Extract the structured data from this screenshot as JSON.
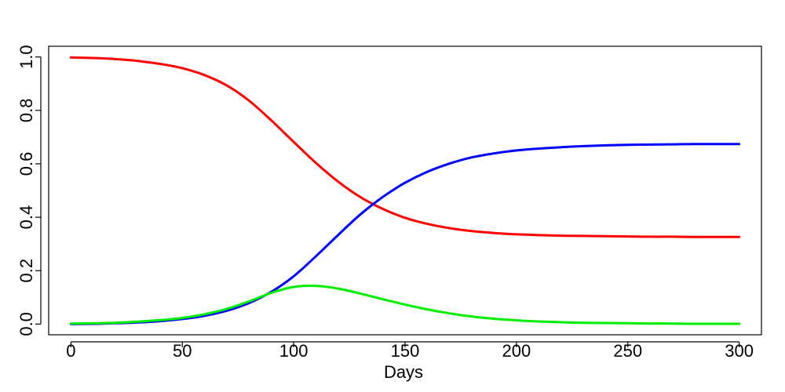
{
  "chart_data": {
    "type": "line",
    "title": "",
    "xlabel": "Days",
    "ylabel": "",
    "xlim": [
      -10,
      310
    ],
    "ylim": [
      -0.04,
      1.04
    ],
    "x_ticks": [
      0,
      50,
      100,
      150,
      200,
      250,
      300
    ],
    "y_ticks": [
      0.0,
      0.2,
      0.4,
      0.6,
      0.8,
      1.0
    ],
    "x_tick_labels": [
      "0",
      "50",
      "100",
      "150",
      "200",
      "250",
      "300"
    ],
    "y_tick_labels": [
      "0.0",
      "0.2",
      "0.4",
      "0.6",
      "0.8",
      "1.0"
    ],
    "grid": false,
    "legend": "none",
    "x": [
      0,
      10,
      20,
      30,
      40,
      50,
      60,
      70,
      80,
      90,
      100,
      110,
      120,
      130,
      140,
      150,
      160,
      170,
      180,
      190,
      200,
      210,
      220,
      230,
      240,
      250,
      260,
      270,
      280,
      290,
      300
    ],
    "series": [
      {
        "color": "#ff0000",
        "values": [
          0.998,
          0.996,
          0.992,
          0.985,
          0.974,
          0.958,
          0.932,
          0.893,
          0.836,
          0.762,
          0.682,
          0.603,
          0.533,
          0.475,
          0.431,
          0.398,
          0.375,
          0.359,
          0.348,
          0.341,
          0.336,
          0.333,
          0.331,
          0.33,
          0.329,
          0.328,
          0.327,
          0.327,
          0.326,
          0.326,
          0.326
        ]
      },
      {
        "color": "#0000ff",
        "values": [
          0.0,
          0.001,
          0.003,
          0.006,
          0.011,
          0.019,
          0.031,
          0.05,
          0.079,
          0.121,
          0.179,
          0.254,
          0.334,
          0.411,
          0.476,
          0.529,
          0.57,
          0.601,
          0.624,
          0.639,
          0.65,
          0.657,
          0.662,
          0.666,
          0.669,
          0.671,
          0.672,
          0.673,
          0.674,
          0.674,
          0.674
        ]
      },
      {
        "color": "#00ee00",
        "values": [
          0.002,
          0.003,
          0.005,
          0.009,
          0.015,
          0.023,
          0.037,
          0.057,
          0.085,
          0.117,
          0.139,
          0.143,
          0.133,
          0.114,
          0.093,
          0.073,
          0.055,
          0.04,
          0.028,
          0.02,
          0.014,
          0.01,
          0.007,
          0.005,
          0.004,
          0.003,
          0.002,
          0.002,
          0.001,
          0.001,
          0.001
        ]
      }
    ]
  }
}
